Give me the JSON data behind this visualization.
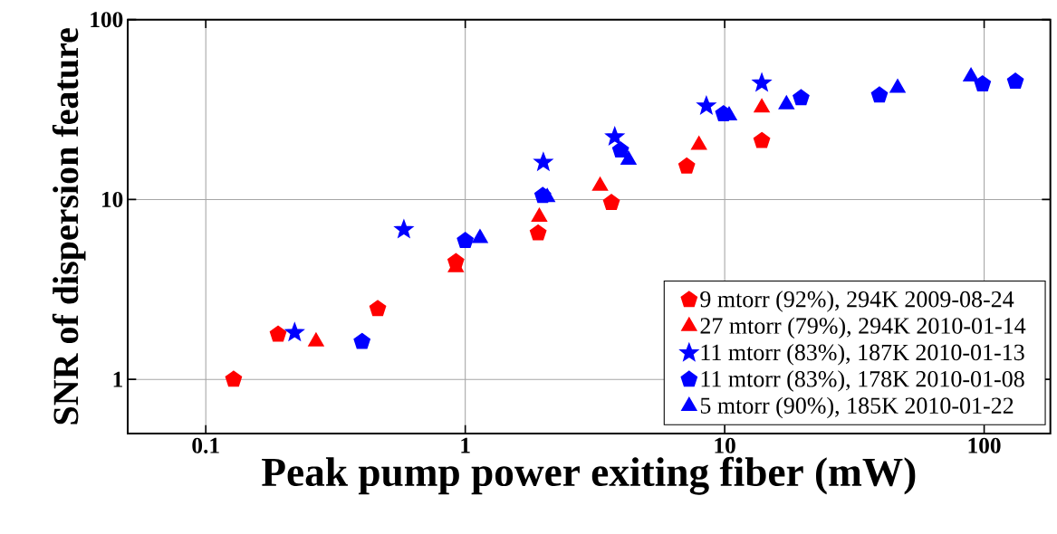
{
  "chart_data": {
    "type": "scatter",
    "xlabel": "Peak pump power exiting fiber (mW)",
    "ylabel": "SNR of dispersion feature",
    "log": "xy",
    "grid": true,
    "legend": "bottom right",
    "xlim": [
      0.05,
      180
    ],
    "ylim": [
      0.5,
      100
    ],
    "xticks": [
      0.1,
      1,
      10,
      100
    ],
    "yticks": [
      1,
      10,
      100
    ],
    "series": [
      {
        "name": "9 mtorr (92%), 294K 2009-08-24",
        "color": "#ff0000",
        "x": [
          0.128,
          0.19,
          0.46,
          0.92,
          1.91,
          3.66,
          7.14,
          13.9
        ],
        "values": [
          1.0,
          1.78,
          2.47,
          4.5,
          6.5,
          9.6,
          15.3,
          21.2
        ]
      },
      {
        "name": "27 mtorr (79%), 294K 2010-01-14",
        "color": "#ff0000",
        "marker": "triangle",
        "x": [
          0.266,
          0.92,
          1.93,
          3.31,
          7.96,
          13.9
        ],
        "values": [
          1.62,
          4.2,
          8.0,
          11.9,
          20.1,
          32.4
        ]
      },
      {
        "name": "11 mtorr (83%), 187K 2010-01-13",
        "color": "#0000ff",
        "marker": "star",
        "x": [
          0.22,
          0.58,
          2.0,
          3.77,
          8.5,
          13.9
        ],
        "values": [
          1.82,
          6.8,
          16.1,
          22.3,
          33.1,
          44.4
        ]
      },
      {
        "name": "11 mtorr (83%), 178K 2010-01-08",
        "color": "#0000ff",
        "x": [
          0.4,
          1.0,
          1.99,
          3.97,
          9.9,
          19.7,
          39.5,
          98.6,
          132
        ],
        "values": [
          1.62,
          5.9,
          10.5,
          18.8,
          29.9,
          36.7,
          38.0,
          43.8,
          45.3
        ]
      },
      {
        "name": "5 mtorr (90%), 185K 2010-01-22",
        "color": "#0000ff",
        "marker": "triangle",
        "x": [
          1.14,
          2.07,
          4.26,
          10.4,
          17.3,
          46.4,
          89
        ],
        "values": [
          6.1,
          10.3,
          16.6,
          29.3,
          33.8,
          41.7,
          48.2
        ]
      }
    ]
  }
}
